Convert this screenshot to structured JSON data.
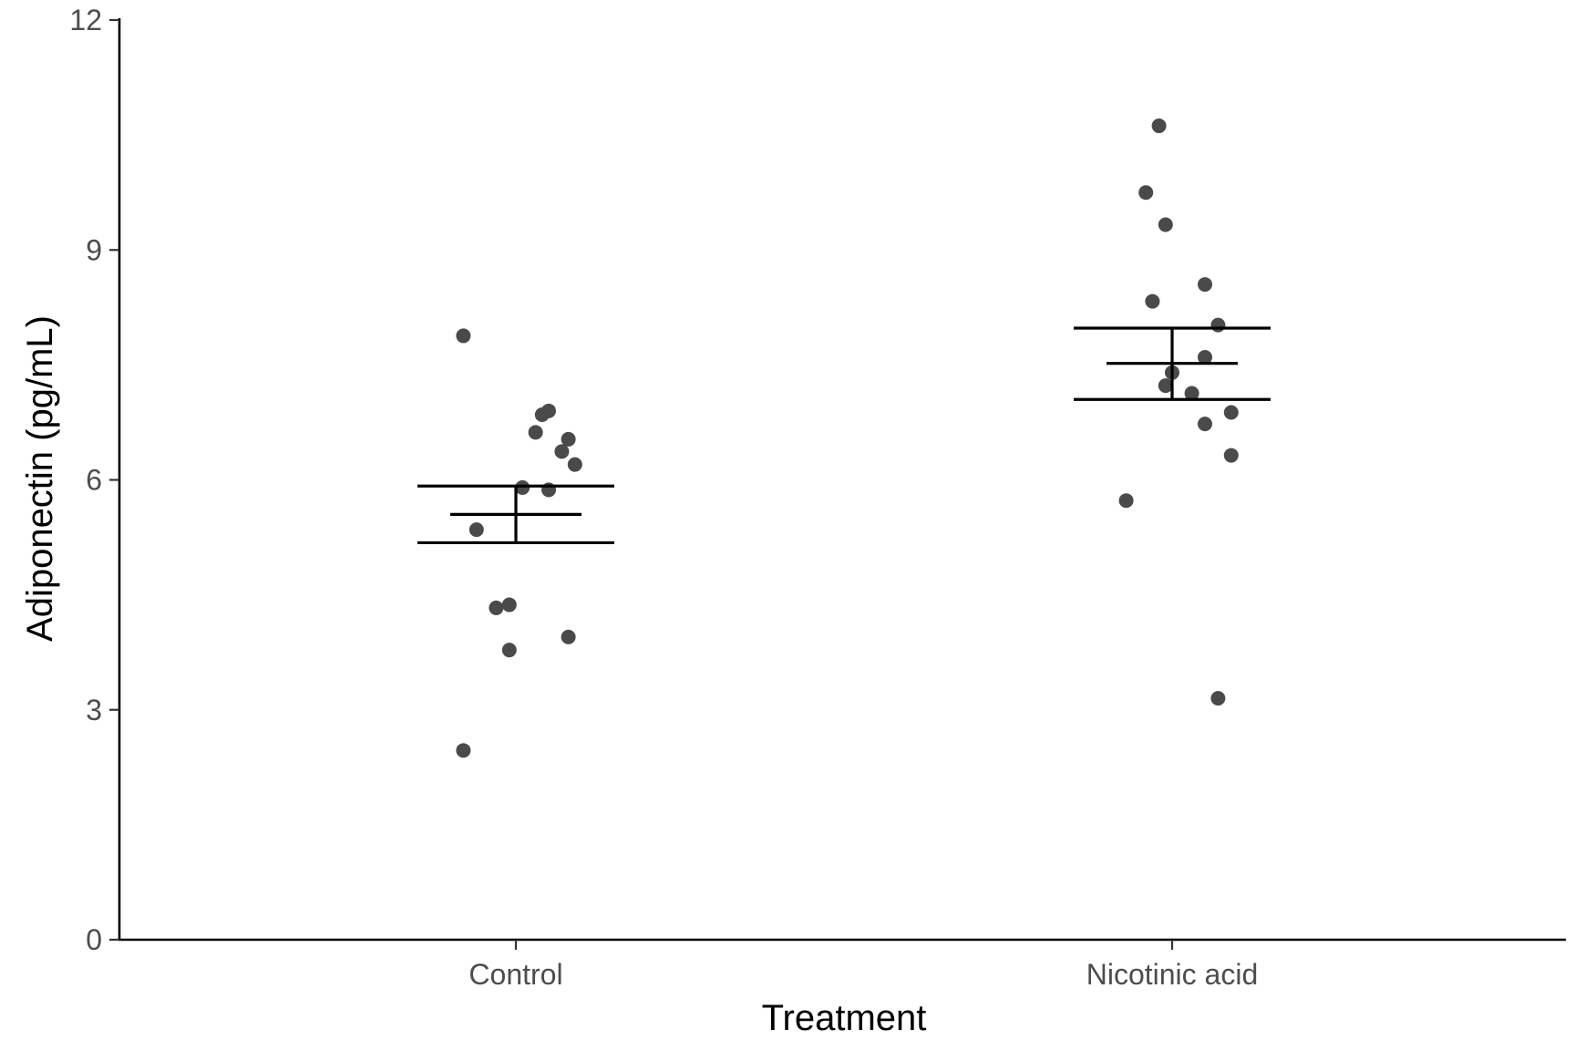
{
  "chart_data": {
    "type": "scatter",
    "xlabel": "Treatment",
    "ylabel": "Adiponectin (pg/mL)",
    "categories": [
      "Control",
      "Nicotinic acid"
    ],
    "ylim": [
      0,
      12
    ],
    "yticks": [
      0,
      3,
      6,
      9,
      12
    ],
    "grid": false,
    "legend": "none",
    "colors": {
      "point": "#4a4a4a",
      "axis": "#000000"
    },
    "series": [
      {
        "category": "Control",
        "points": [
          {
            "jitter": -0.08,
            "y": 7.88
          },
          {
            "jitter": 0.05,
            "y": 6.9
          },
          {
            "jitter": 0.04,
            "y": 6.85
          },
          {
            "jitter": 0.03,
            "y": 6.62
          },
          {
            "jitter": 0.08,
            "y": 6.53
          },
          {
            "jitter": 0.07,
            "y": 6.37
          },
          {
            "jitter": 0.09,
            "y": 6.2
          },
          {
            "jitter": 0.01,
            "y": 5.9
          },
          {
            "jitter": 0.05,
            "y": 5.87
          },
          {
            "jitter": -0.06,
            "y": 5.35
          },
          {
            "jitter": -0.03,
            "y": 4.33
          },
          {
            "jitter": -0.01,
            "y": 4.37
          },
          {
            "jitter": 0.08,
            "y": 3.95
          },
          {
            "jitter": -0.01,
            "y": 3.78
          },
          {
            "jitter": -0.08,
            "y": 2.47
          }
        ],
        "mean": 5.55,
        "se_upper": 5.92,
        "se_lower": 5.18
      },
      {
        "category": "Nicotinic acid",
        "points": [
          {
            "jitter": -0.02,
            "y": 10.62
          },
          {
            "jitter": -0.04,
            "y": 9.75
          },
          {
            "jitter": -0.01,
            "y": 9.33
          },
          {
            "jitter": 0.05,
            "y": 8.55
          },
          {
            "jitter": -0.03,
            "y": 8.33
          },
          {
            "jitter": 0.07,
            "y": 8.02
          },
          {
            "jitter": 0.05,
            "y": 7.6
          },
          {
            "jitter": 0.0,
            "y": 7.4
          },
          {
            "jitter": -0.01,
            "y": 7.23
          },
          {
            "jitter": 0.03,
            "y": 7.13
          },
          {
            "jitter": 0.09,
            "y": 6.88
          },
          {
            "jitter": 0.05,
            "y": 6.73
          },
          {
            "jitter": 0.09,
            "y": 6.32
          },
          {
            "jitter": -0.07,
            "y": 5.73
          },
          {
            "jitter": 0.07,
            "y": 3.15
          }
        ],
        "mean": 7.52,
        "se_upper": 7.98,
        "se_lower": 7.05
      }
    ]
  }
}
